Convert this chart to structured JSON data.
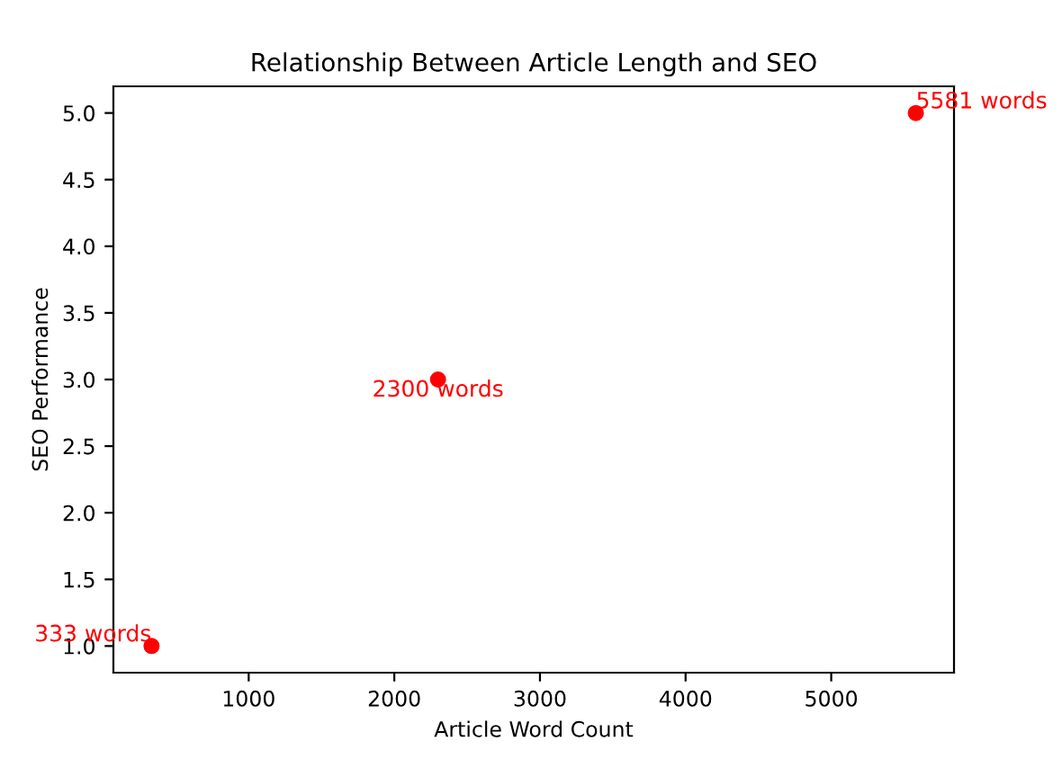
{
  "chart_data": {
    "type": "scatter",
    "title": "Relationship Between Article Length and SEO",
    "xlabel": "Article Word Count",
    "ylabel": "SEO Performance",
    "x": [
      333,
      2300,
      5581
    ],
    "values": [
      1,
      3,
      5
    ],
    "color": "#ff0000",
    "marker": "circle",
    "annotations": [
      {
        "text": "333 words",
        "x": 333,
        "y": 1
      },
      {
        "text": "2300 words",
        "x": 2300,
        "y": 3
      },
      {
        "text": "5581 words",
        "x": 5581,
        "y": 5
      }
    ],
    "xlim": [
      71,
      5843
    ],
    "ylim": [
      0.8,
      5.2
    ],
    "xticks": [
      1000,
      2000,
      3000,
      4000,
      5000
    ],
    "yticks": [
      {
        "value": 1,
        "label": "1.0"
      },
      {
        "value": 1.5,
        "label": "1.5"
      },
      {
        "value": 2,
        "label": "2.0"
      },
      {
        "value": 2.5,
        "label": "2.5"
      },
      {
        "value": 3,
        "label": "3.0"
      },
      {
        "value": 3.5,
        "label": "3.5"
      },
      {
        "value": 4,
        "label": "4.0"
      },
      {
        "value": 4.5,
        "label": "4.5"
      },
      {
        "value": 5,
        "label": "5.0"
      }
    ],
    "grid": false,
    "legend": false
  }
}
